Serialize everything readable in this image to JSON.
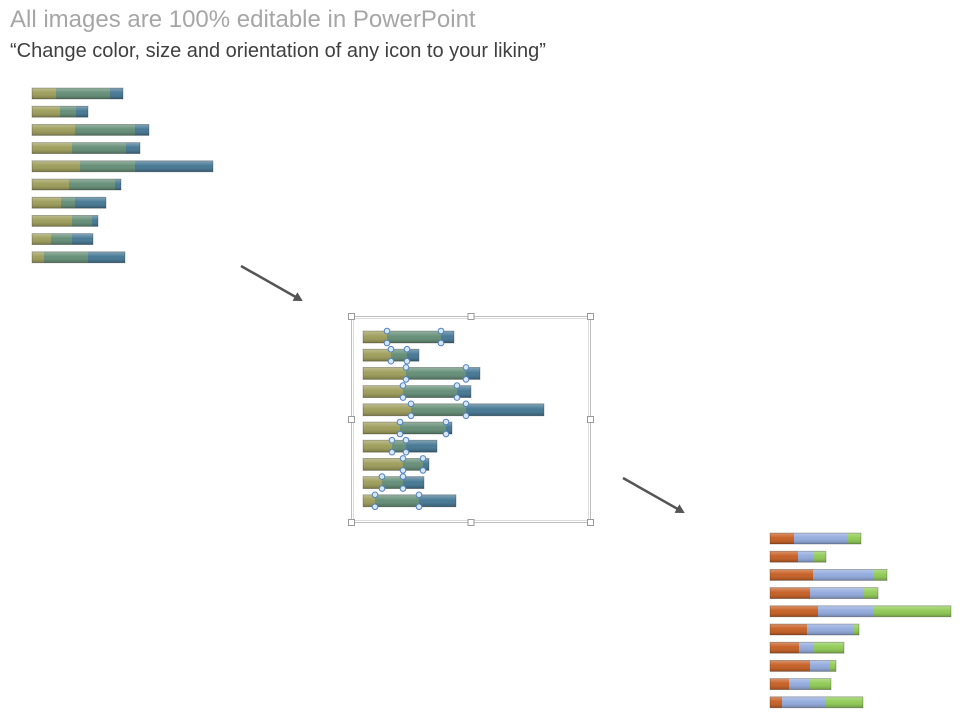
{
  "header": {
    "title": "All images are 100% editable in PowerPoint",
    "subtitle": "“Change color, size and orientation of any icon to your liking”"
  },
  "chart_data": [
    {
      "type": "bar",
      "orientation": "horizontal",
      "stacked": true,
      "state": "original",
      "series": [
        {
          "values": [
            24,
            28,
            43,
            40,
            48,
            37,
            29,
            40,
            19,
            12
          ]
        },
        {
          "values": [
            54,
            16,
            60,
            54,
            55,
            46,
            14,
            20,
            21,
            44
          ]
        },
        {
          "values": [
            13,
            12,
            14,
            14,
            78,
            6,
            31,
            6,
            21,
            37
          ]
        }
      ],
      "colors": [
        "#9a9a55",
        "#5f8a72",
        "#3f7390"
      ]
    },
    {
      "type": "bar",
      "orientation": "horizontal",
      "stacked": true,
      "state": "selected",
      "series": [
        {
          "values": [
            24,
            28,
            43,
            40,
            48,
            37,
            29,
            40,
            19,
            12
          ]
        },
        {
          "values": [
            54,
            16,
            60,
            54,
            55,
            46,
            14,
            20,
            21,
            44
          ]
        },
        {
          "values": [
            13,
            12,
            14,
            14,
            78,
            6,
            31,
            6,
            21,
            37
          ]
        }
      ],
      "colors": [
        "#9a9a55",
        "#5f8a72",
        "#3f7390"
      ]
    },
    {
      "type": "bar",
      "orientation": "horizontal",
      "stacked": true,
      "state": "recolored",
      "series": [
        {
          "values": [
            24,
            28,
            43,
            40,
            48,
            37,
            29,
            40,
            19,
            12
          ]
        },
        {
          "values": [
            54,
            16,
            60,
            54,
            55,
            46,
            14,
            20,
            21,
            44
          ]
        },
        {
          "values": [
            13,
            12,
            14,
            14,
            78,
            6,
            31,
            6,
            21,
            37
          ]
        }
      ],
      "colors": [
        "#c55a1c",
        "#8fa8dc",
        "#8cc94f"
      ]
    }
  ],
  "icons": {
    "arrow_1": "diagonal-arrow-icon",
    "arrow_2": "diagonal-arrow-icon",
    "selection_handles": "resize-handle-icon"
  }
}
